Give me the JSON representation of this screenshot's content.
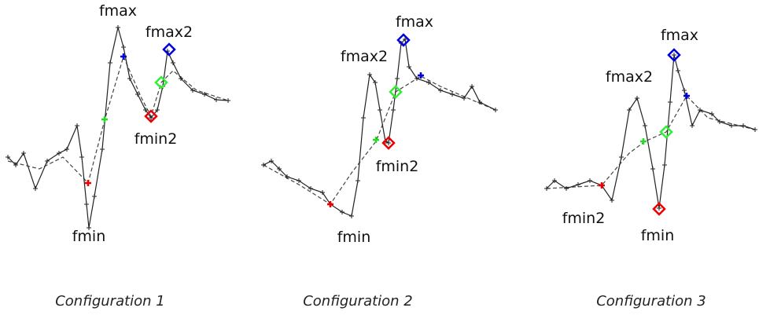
{
  "panels": [
    {
      "labels": [
        "fmax",
        "fmax2",
        "fmin2",
        "fmin"
      ],
      "caption": "Configuration 1"
    },
    {
      "labels": [
        "fmax",
        "fmax2",
        "fmin2",
        "fmin"
      ],
      "caption": "Configuration 2"
    },
    {
      "labels": [
        "fmax",
        "fmax2",
        "fmin2",
        "fmin"
      ],
      "caption": "Configuration 3"
    }
  ]
}
